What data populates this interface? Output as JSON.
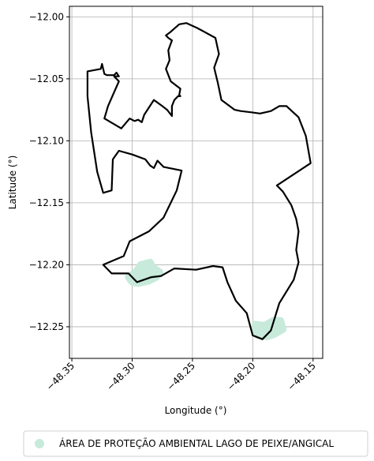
{
  "chart_data": {
    "type": "map",
    "title": "",
    "xlabel": "Longitude (°)",
    "ylabel": "Latitude (°)",
    "xlim": [
      -48.352,
      -48.142
    ],
    "ylim": [
      -12.2755,
      -11.9915
    ],
    "xticks": [
      -48.35,
      -48.3,
      -48.25,
      -48.2,
      -48.15
    ],
    "xtick_labels": [
      "−48.35",
      "−48.30",
      "−48.25",
      "−48.20",
      "−48.15"
    ],
    "yticks": [
      -12.0,
      -12.05,
      -12.1,
      -12.15,
      -12.2,
      -12.25
    ],
    "ytick_labels": [
      "−12.00",
      "−12.05",
      "−12.10",
      "−12.15",
      "−12.20",
      "−12.25"
    ],
    "grid": true,
    "legend_position": "bottom-center",
    "colors": {
      "boundary": "#000000",
      "protected_area": "#c7eadb",
      "grid": "#b0b0b0"
    },
    "series": [
      {
        "kind": "polygon-outline",
        "points": [
          [
            -48.337,
            -12.044
          ],
          [
            -48.326,
            -12.042
          ],
          [
            -48.325,
            -12.038
          ],
          [
            -48.323,
            -12.046
          ],
          [
            -48.321,
            -12.047
          ],
          [
            -48.315,
            -12.047
          ],
          [
            -48.313,
            -12.045
          ],
          [
            -48.311,
            -12.048
          ],
          [
            -48.315,
            -12.048
          ],
          [
            -48.311,
            -12.052
          ],
          [
            -48.32,
            -12.072
          ],
          [
            -48.323,
            -12.082
          ],
          [
            -48.309,
            -12.09
          ],
          [
            -48.302,
            -12.082
          ],
          [
            -48.298,
            -12.084
          ],
          [
            -48.295,
            -12.083
          ],
          [
            -48.292,
            -12.085
          ],
          [
            -48.29,
            -12.079
          ],
          [
            -48.282,
            -12.067
          ],
          [
            -48.275,
            -12.072
          ],
          [
            -48.271,
            -12.075
          ],
          [
            -48.267,
            -12.08
          ],
          [
            -48.267,
            -12.072
          ],
          [
            -48.265,
            -12.067
          ],
          [
            -48.262,
            -12.064
          ],
          [
            -48.26,
            -12.064
          ],
          [
            -48.261,
            -12.063
          ],
          [
            -48.26,
            -12.058
          ],
          [
            -48.264,
            -12.055
          ],
          [
            -48.268,
            -12.052
          ],
          [
            -48.272,
            -12.042
          ],
          [
            -48.269,
            -12.035
          ],
          [
            -48.27,
            -12.027
          ],
          [
            -48.267,
            -12.019
          ],
          [
            -48.27,
            -12.017
          ],
          [
            -48.272,
            -12.015
          ],
          [
            -48.268,
            -12.012
          ],
          [
            -48.261,
            -12.006
          ],
          [
            -48.255,
            -12.005
          ],
          [
            -48.246,
            -12.009
          ],
          [
            -48.231,
            -12.017
          ],
          [
            -48.228,
            -12.03
          ],
          [
            -48.232,
            -12.041
          ],
          [
            -48.229,
            -12.053
          ],
          [
            -48.226,
            -12.067
          ],
          [
            -48.215,
            -12.075
          ],
          [
            -48.21,
            -12.076
          ],
          [
            -48.201,
            -12.077
          ],
          [
            -48.194,
            -12.078
          ],
          [
            -48.185,
            -12.076
          ],
          [
            -48.178,
            -12.072
          ],
          [
            -48.172,
            -12.072
          ],
          [
            -48.162,
            -12.081
          ],
          [
            -48.156,
            -12.096
          ],
          [
            -48.152,
            -12.118
          ],
          [
            -48.166,
            -12.127
          ],
          [
            -48.18,
            -12.136
          ],
          [
            -48.175,
            -12.141
          ],
          [
            -48.168,
            -12.152
          ],
          [
            -48.164,
            -12.163
          ],
          [
            -48.162,
            -12.173
          ],
          [
            -48.164,
            -12.188
          ],
          [
            -48.162,
            -12.198
          ],
          [
            -48.166,
            -12.212
          ],
          [
            -48.178,
            -12.231
          ],
          [
            -48.185,
            -12.253
          ],
          [
            -48.192,
            -12.26
          ],
          [
            -48.2,
            -12.257
          ],
          [
            -48.205,
            -12.239
          ],
          [
            -48.214,
            -12.229
          ],
          [
            -48.221,
            -12.214
          ],
          [
            -48.225,
            -12.202
          ],
          [
            -48.233,
            -12.201
          ],
          [
            -48.247,
            -12.204
          ],
          [
            -48.265,
            -12.203
          ],
          [
            -48.276,
            -12.209
          ],
          [
            -48.284,
            -12.21
          ],
          [
            -48.296,
            -12.214
          ],
          [
            -48.303,
            -12.207
          ],
          [
            -48.317,
            -12.207
          ],
          [
            -48.324,
            -12.2
          ],
          [
            -48.307,
            -12.193
          ],
          [
            -48.302,
            -12.181
          ],
          [
            -48.286,
            -12.173
          ],
          [
            -48.274,
            -12.162
          ],
          [
            -48.268,
            -12.15
          ],
          [
            -48.263,
            -12.14
          ],
          [
            -48.259,
            -12.124
          ],
          [
            -48.274,
            -12.121
          ],
          [
            -48.279,
            -12.116
          ],
          [
            -48.282,
            -12.122
          ],
          [
            -48.285,
            -12.12
          ],
          [
            -48.289,
            -12.115
          ],
          [
            -48.3,
            -12.111
          ],
          [
            -48.311,
            -12.108
          ],
          [
            -48.316,
            -12.115
          ],
          [
            -48.317,
            -12.14
          ],
          [
            -48.324,
            -12.142
          ],
          [
            -48.329,
            -12.125
          ],
          [
            -48.334,
            -12.093
          ],
          [
            -48.337,
            -12.064
          ],
          [
            -48.337,
            -12.044
          ]
        ]
      },
      {
        "name": "ÁREA DE PROTEÇÃO AMBIENTAL LAGO DE PEIXE/ANGICAL",
        "kind": "filled-region",
        "regions": [
          [
            [
              -48.293,
              -12.2
            ],
            [
              -48.285,
              -12.198
            ],
            [
              -48.283,
              -12.202
            ],
            [
              -48.277,
              -12.206
            ],
            [
              -48.28,
              -12.21
            ],
            [
              -48.286,
              -12.213
            ],
            [
              -48.295,
              -12.215
            ],
            [
              -48.3,
              -12.214
            ],
            [
              -48.303,
              -12.21
            ],
            [
              -48.297,
              -12.206
            ],
            [
              -48.293,
              -12.2
            ]
          ],
          [
            [
              -48.198,
              -12.248
            ],
            [
              -48.19,
              -12.249
            ],
            [
              -48.183,
              -12.245
            ],
            [
              -48.177,
              -12.245
            ],
            [
              -48.175,
              -12.252
            ],
            [
              -48.182,
              -12.256
            ],
            [
              -48.188,
              -12.258
            ],
            [
              -48.196,
              -12.257
            ],
            [
              -48.198,
              -12.252
            ],
            [
              -48.198,
              -12.248
            ]
          ]
        ]
      }
    ]
  }
}
